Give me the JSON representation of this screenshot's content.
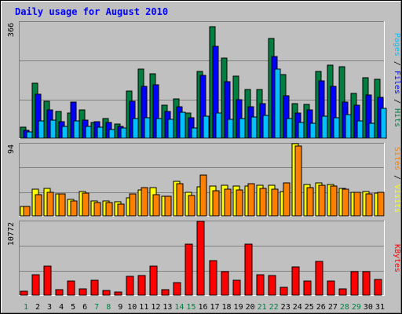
{
  "chart_data": [
    {
      "type": "bar",
      "panel": "hits-files-pages",
      "title": "Daily usage for August 2010",
      "categories": [
        "1",
        "2",
        "3",
        "4",
        "5",
        "6",
        "7",
        "8",
        "9",
        "10",
        "11",
        "12",
        "13",
        "14",
        "15",
        "16",
        "17",
        "18",
        "19",
        "20",
        "21",
        "22",
        "23",
        "24",
        "25",
        "26",
        "27",
        "28",
        "29",
        "30",
        "31"
      ],
      "ymax_label": "366",
      "ylim": [
        0,
        366
      ],
      "series": [
        {
          "name": "Hits",
          "color": "#008040",
          "values": [
            35,
            172,
            116,
            85,
            79,
            88,
            50,
            62,
            44,
            149,
            217,
            202,
            104,
            124,
            78,
            210,
            351,
            252,
            196,
            154,
            154,
            313,
            200,
            109,
            106,
            211,
            229,
            225,
            141,
            190,
            185
          ]
        },
        {
          "name": "Files",
          "color": "#0000ff",
          "values": [
            24,
            138,
            90,
            53,
            114,
            57,
            53,
            50,
            37,
            117,
            162,
            168,
            83,
            100,
            64,
            198,
            290,
            178,
            120,
            98,
            108,
            258,
            134,
            80,
            90,
            180,
            163,
            114,
            105,
            137,
            128
          ]
        },
        {
          "name": "Pages",
          "color": "#00c0ff",
          "values": [
            21,
            54,
            58,
            38,
            54,
            37,
            34,
            28,
            31,
            61,
            64,
            63,
            59,
            82,
            33,
            70,
            78,
            59,
            62,
            67,
            72,
            217,
            62,
            49,
            46,
            69,
            65,
            73,
            54,
            46,
            93
          ]
        }
      ]
    },
    {
      "type": "bar",
      "panel": "visits-sites",
      "categories": [
        "1",
        "2",
        "3",
        "4",
        "5",
        "6",
        "7",
        "8",
        "9",
        "10",
        "11",
        "12",
        "13",
        "14",
        "15",
        "16",
        "17",
        "18",
        "19",
        "20",
        "21",
        "22",
        "23",
        "24",
        "25",
        "26",
        "27",
        "28",
        "29",
        "30",
        "31"
      ],
      "ymax_label": "94",
      "ylim": [
        0,
        94
      ],
      "series": [
        {
          "name": "Visits",
          "color": "#ffff00",
          "values": [
            12,
            35,
            36,
            29,
            21,
            32,
            19,
            19,
            18,
            24,
            34,
            37,
            26,
            45,
            31,
            38,
            39,
            40,
            39,
            39,
            40,
            40,
            32,
            94,
            41,
            43,
            41,
            36,
            31,
            32,
            30
          ]
        },
        {
          "name": "Sites",
          "color": "#ff8000",
          "values": [
            12,
            28,
            31,
            29,
            19,
            30,
            17,
            17,
            15,
            29,
            37,
            28,
            26,
            42,
            27,
            53,
            33,
            35,
            34,
            42,
            36,
            35,
            43,
            91,
            37,
            40,
            39,
            35,
            31,
            29,
            31
          ]
        }
      ]
    },
    {
      "type": "bar",
      "panel": "kbytes",
      "categories": [
        "1",
        "2",
        "3",
        "4",
        "5",
        "6",
        "7",
        "8",
        "9",
        "10",
        "11",
        "12",
        "13",
        "14",
        "15",
        "16",
        "17",
        "18",
        "19",
        "20",
        "21",
        "22",
        "23",
        "24",
        "25",
        "26",
        "27",
        "28",
        "29",
        "30",
        "31"
      ],
      "ymax_label": "10772",
      "ylim": [
        0,
        10772
      ],
      "series": [
        {
          "name": "KBytes",
          "color": "#ff0000",
          "values": [
            605,
            2925,
            4196,
            799,
            2093,
            935,
            2201,
            743,
            470,
            2778,
            2860,
            4196,
            746,
            1862,
            7422,
            10772,
            5064,
            3440,
            2203,
            7414,
            2925,
            2831,
            1195,
            4131,
            2093,
            4893,
            2074,
            920,
            3413,
            3385,
            2271
          ]
        }
      ]
    }
  ],
  "colors": {
    "background": "#c0c0c0",
    "weekend_tick": "#008040",
    "weekday_tick": "#000000",
    "title": "#0000ff"
  },
  "weekend_days": [
    "1",
    "7",
    "8",
    "14",
    "15",
    "21",
    "22",
    "28",
    "29"
  ]
}
